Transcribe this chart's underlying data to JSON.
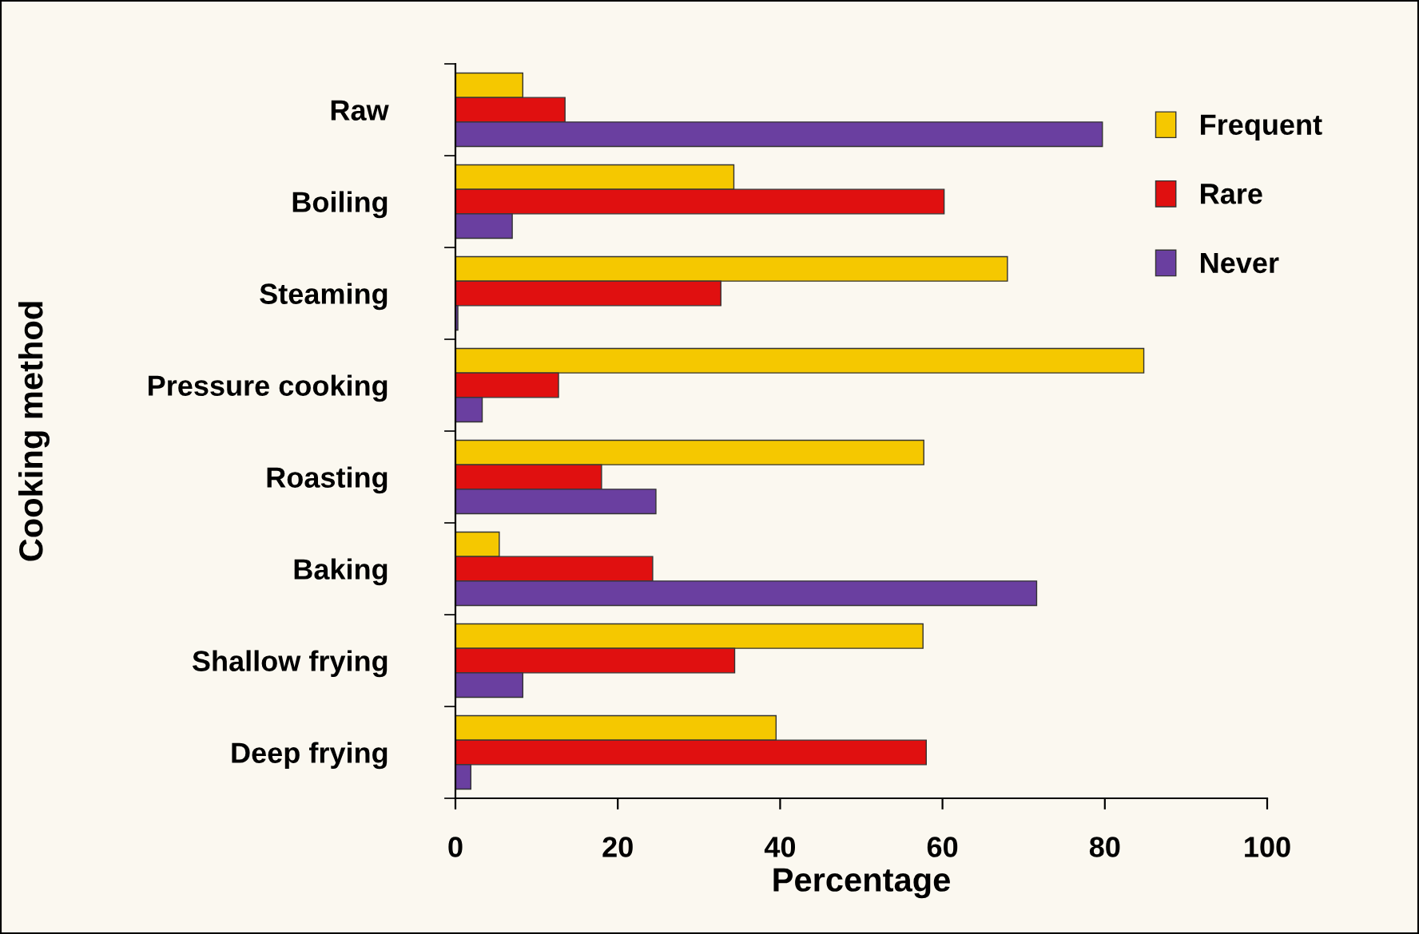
{
  "chart_data": {
    "type": "bar",
    "orientation": "horizontal",
    "xlabel": "Percentage",
    "ylabel": "Cooking method",
    "categories": [
      "Raw",
      "Boiling",
      "Steaming",
      "Pressure cooking",
      "Roasting",
      "Baking",
      "Shallow frying",
      "Deep frying"
    ],
    "series": [
      {
        "name": "Frequent",
        "color": "#f5c800",
        "values": [
          8.3,
          34.3,
          68.0,
          84.8,
          57.7,
          5.4,
          57.6,
          39.5
        ]
      },
      {
        "name": "Rare",
        "color": "#e01010",
        "values": [
          13.5,
          60.2,
          32.7,
          12.7,
          18.0,
          24.3,
          34.4,
          58.0
        ]
      },
      {
        "name": "Never",
        "color": "#6a3fa0",
        "values": [
          79.7,
          7.0,
          0.3,
          3.3,
          24.7,
          71.6,
          8.3,
          1.9
        ]
      }
    ],
    "xlim": [
      0,
      100
    ],
    "xticks": [
      0,
      20,
      40,
      60,
      80,
      100
    ],
    "grid": false,
    "legend": "top right"
  }
}
